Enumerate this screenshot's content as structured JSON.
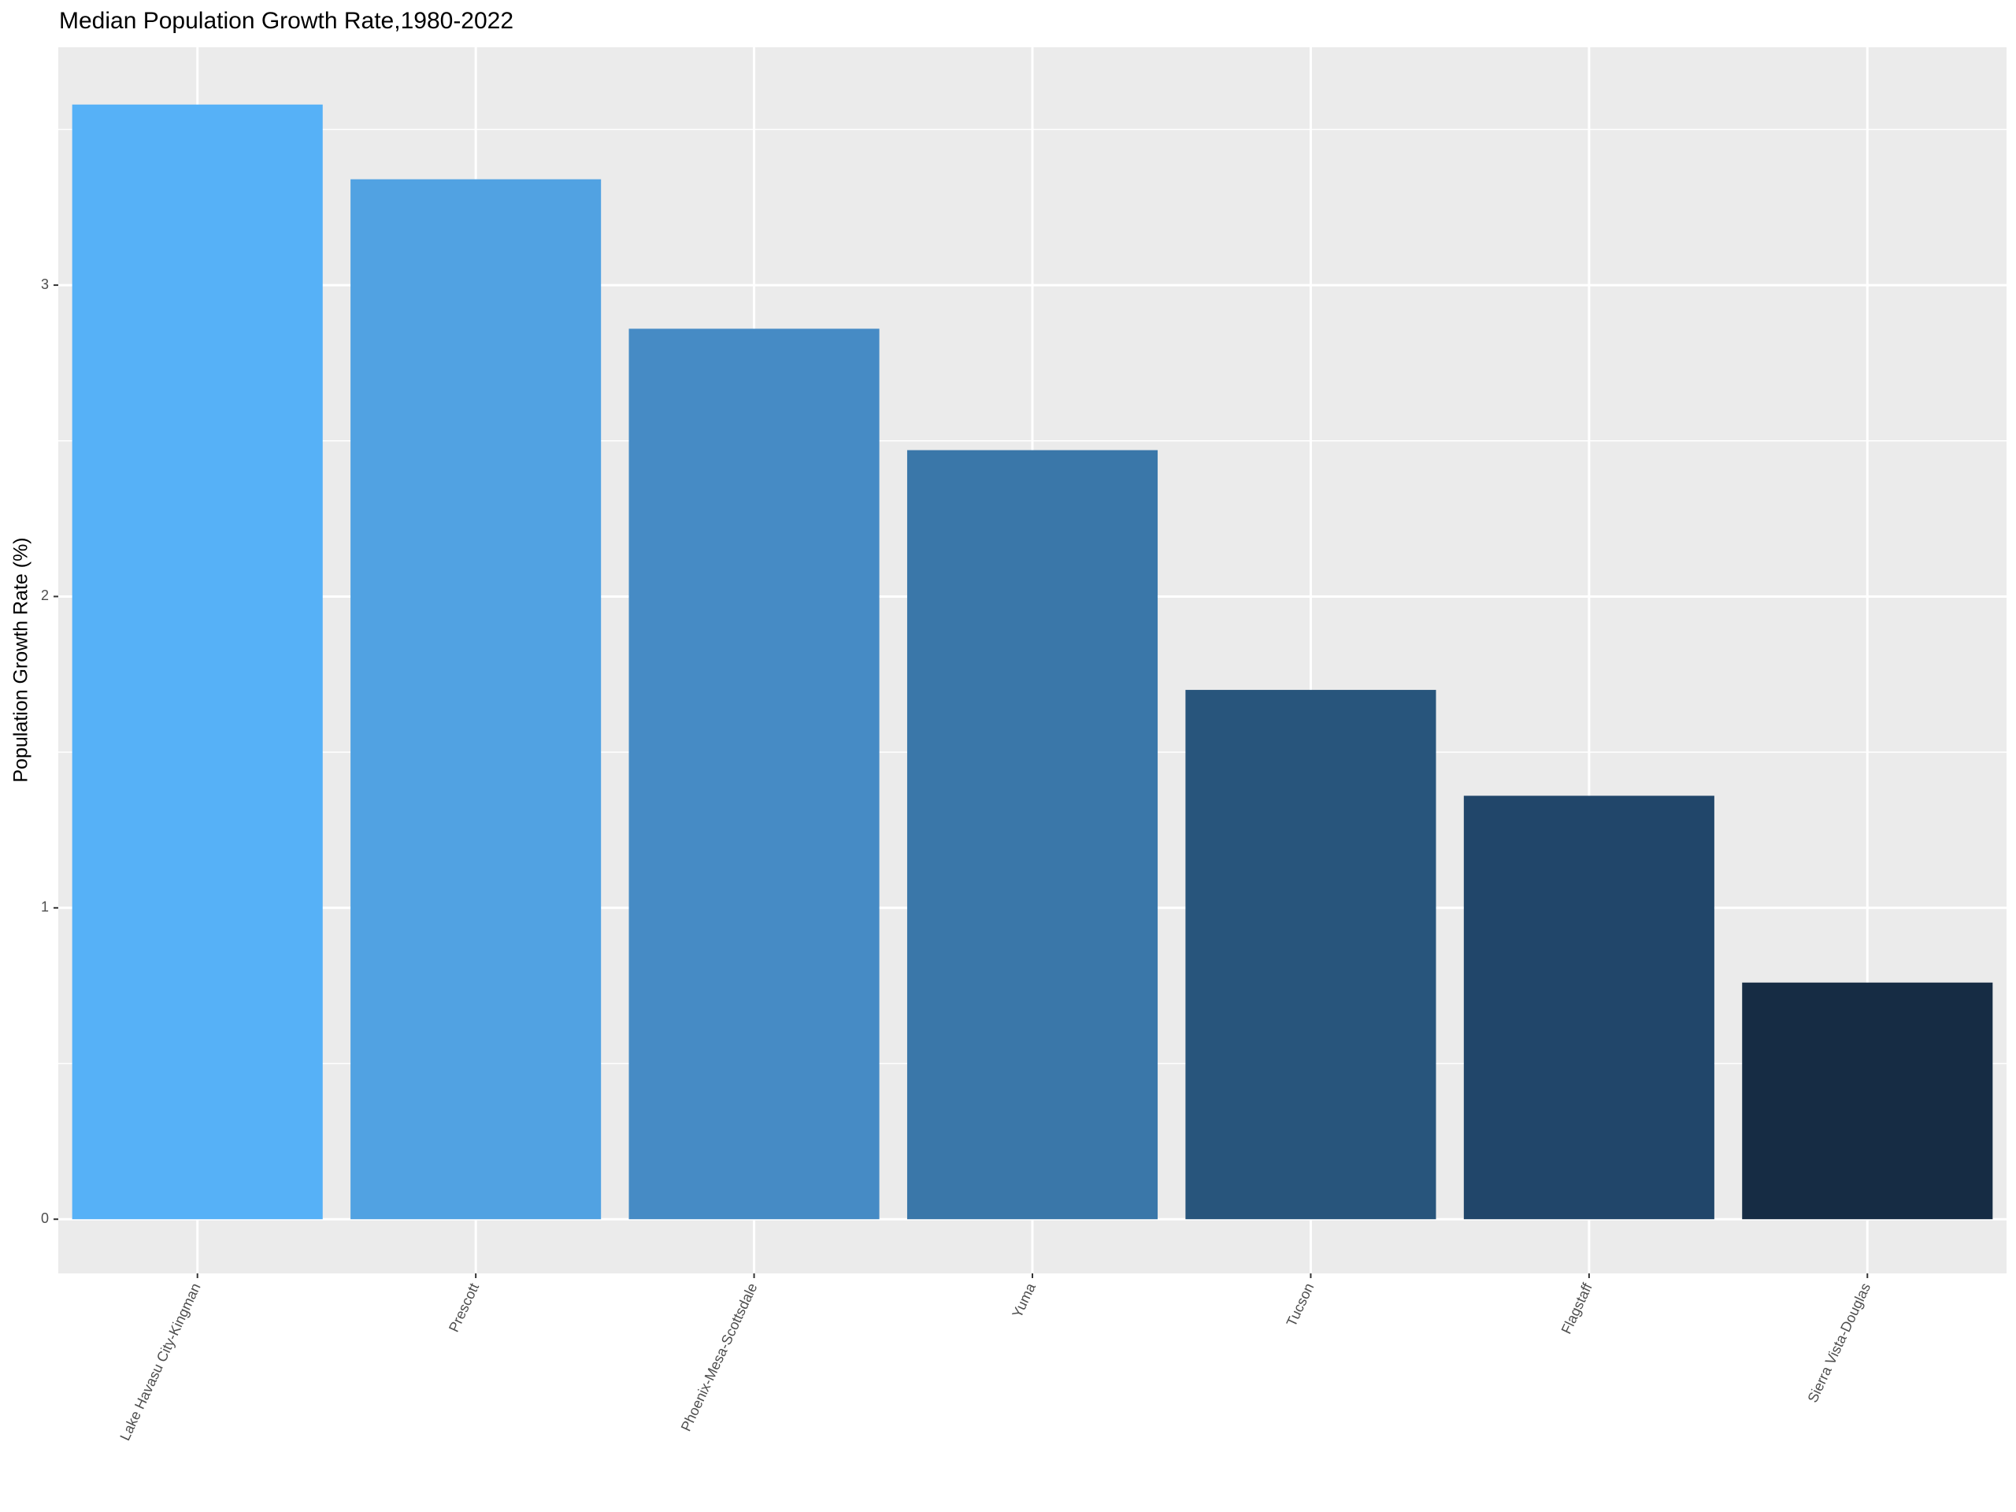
{
  "chart_data": {
    "type": "bar",
    "title": "Median Population Growth Rate,1980-2022",
    "y_label": "Population Growth Rate (%)",
    "categories": [
      "Lake Havasu City-Kingman",
      "Prescott",
      "Phoenix-Mesa-Scottsdale",
      "Yuma",
      "Tucson",
      "Flagstaff",
      "Sierra Vista-Douglas"
    ],
    "values": [
      3.58,
      3.34,
      2.86,
      2.47,
      1.7,
      1.36,
      0.76
    ],
    "colors": [
      "#56b1f7",
      "#51a2e2",
      "#468bc5",
      "#3a77a9",
      "#28557c",
      "#21466a",
      "#162c44"
    ],
    "ylim": [
      -0.174,
      3.764
    ],
    "yticks": [
      0,
      1,
      2,
      3
    ],
    "grid": true
  }
}
